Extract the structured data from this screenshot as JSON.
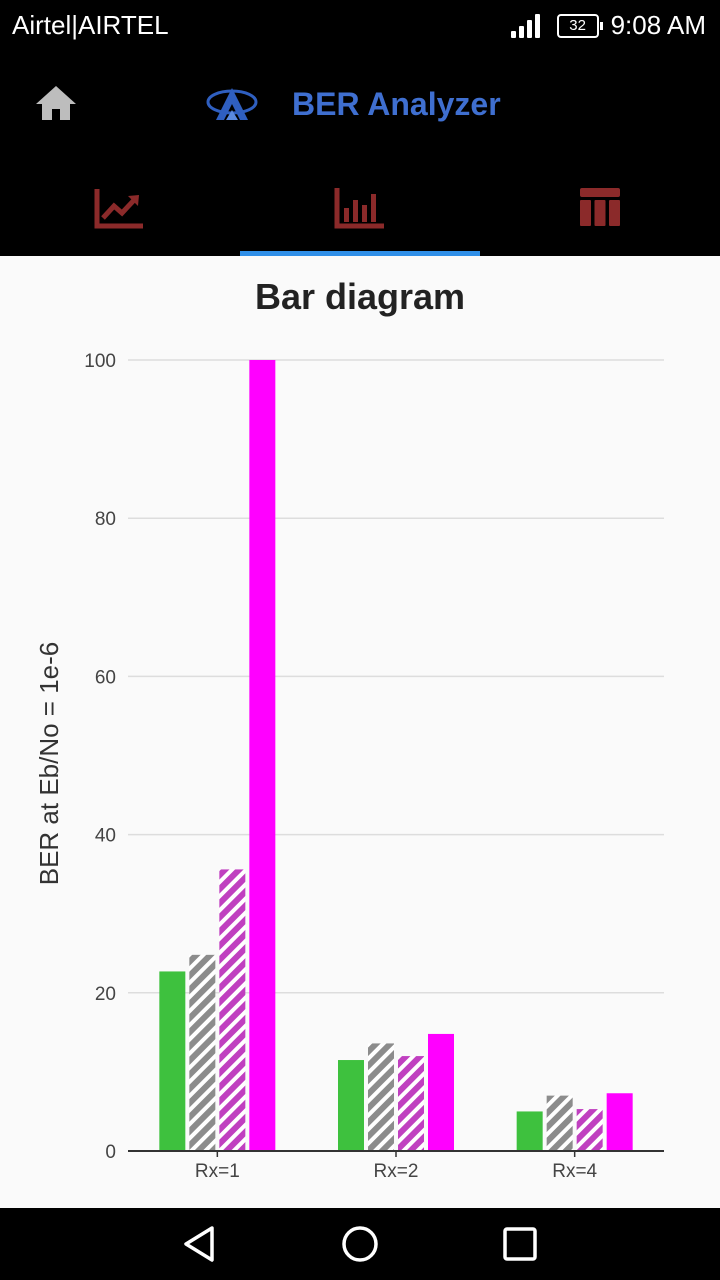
{
  "status_bar": {
    "carrier": "Airtel|AIRTEL",
    "battery": "32",
    "time": "9:08 AM"
  },
  "app_bar": {
    "title": "BER Analyzer",
    "title_color": "#3f6fd0"
  },
  "tabs": [
    {
      "icon": "line-chart-icon",
      "active": false
    },
    {
      "icon": "bar-chart-icon",
      "active": true
    },
    {
      "icon": "table-icon",
      "active": false
    }
  ],
  "colors": {
    "tab_icon": "#8b2a2a",
    "tab_indicator": "#2f8fe8"
  },
  "chart_data": {
    "type": "bar",
    "title": "Bar diagram",
    "ylabel": "BER at Eb/No = 1e-6",
    "xlabel": "",
    "categories": [
      "Rx=1",
      "Rx=2",
      "Rx=4"
    ],
    "ylim": [
      0,
      100
    ],
    "yticks": [
      0,
      20,
      40,
      60,
      80,
      100
    ],
    "grid": true,
    "series": [
      {
        "values": [
          22.7,
          11.5,
          5.0
        ],
        "color": "#3ec13e",
        "pattern": "solid"
      },
      {
        "values": [
          24.8,
          13.6,
          7.0
        ],
        "color": "#8c8c8c",
        "pattern": "striped"
      },
      {
        "values": [
          35.6,
          12.0,
          5.3
        ],
        "color": "#c040c0",
        "pattern": "striped"
      },
      {
        "values": [
          100,
          14.8,
          7.3
        ],
        "color": "#ff00ff",
        "pattern": "solid"
      }
    ]
  }
}
